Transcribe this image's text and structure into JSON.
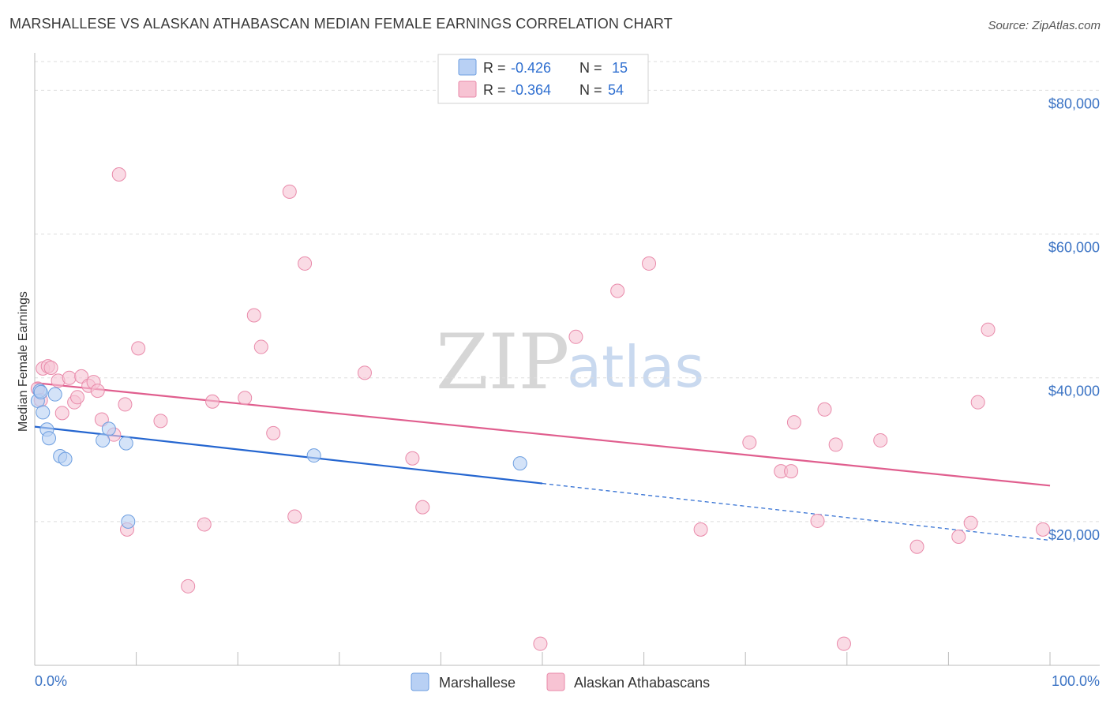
{
  "header": {
    "title": "MARSHALLESE VS ALASKAN ATHABASCAN MEDIAN FEMALE EARNINGS CORRELATION CHART",
    "source": "Source: ZipAtlas.com"
  },
  "watermark": {
    "zip": "ZIP",
    "atlas": "atlas"
  },
  "colors": {
    "marshallese_fill": "#b8d0f4",
    "marshallese_stroke": "#6c9ee0",
    "marshallese_line": "#2566d0",
    "athabascan_fill": "#f7c3d3",
    "athabascan_stroke": "#e98aaa",
    "athabascan_line": "#e05e8e",
    "tick_text": "#3b73c4",
    "grid": "#dddddd"
  },
  "legend": {
    "rows": [
      {
        "r_label": "R =",
        "r_value": "-0.426",
        "n_label": "N =",
        "n_value": "15"
      },
      {
        "r_label": "R =",
        "r_value": "-0.364",
        "n_label": "N =",
        "n_value": "54"
      }
    ]
  },
  "bottom_legend": {
    "marshallese": "Marshallese",
    "athabascan": "Alaskan Athabascans"
  },
  "chart_data": {
    "type": "scatter",
    "title": "MARSHALLESE VS ALASKAN ATHABASCAN MEDIAN FEMALE EARNINGS CORRELATION CHART",
    "xlabel": "",
    "ylabel": "Median Female Earnings",
    "xlim": [
      0,
      100
    ],
    "ylim": [
      0,
      84000
    ],
    "x_tick_labels": [
      "0.0%",
      "100.0%"
    ],
    "y_ticks": [
      {
        "value": 20000,
        "label": "$20,000"
      },
      {
        "value": 40000,
        "label": "$40,000"
      },
      {
        "value": 60000,
        "label": "$60,000"
      },
      {
        "value": 80000,
        "label": "$80,000"
      }
    ],
    "series": [
      {
        "name": "Marshallese",
        "r": -0.426,
        "n": 15,
        "points": [
          [
            0.3,
            36800
          ],
          [
            0.5,
            38200
          ],
          [
            0.8,
            35200
          ],
          [
            1.2,
            32800
          ],
          [
            1.4,
            31600
          ],
          [
            2.0,
            37700
          ],
          [
            2.5,
            29100
          ],
          [
            3.0,
            28700
          ],
          [
            6.7,
            31300
          ],
          [
            7.3,
            32900
          ],
          [
            9.0,
            30900
          ],
          [
            9.2,
            20000
          ],
          [
            27.5,
            29200
          ],
          [
            47.8,
            28100
          ],
          [
            0.6,
            38000
          ]
        ],
        "trend": {
          "x0": 0,
          "y0": 33200,
          "x1": 50,
          "y1": 25300,
          "dash_to_x": 100,
          "dash_to_y": 17400
        }
      },
      {
        "name": "Alaskan Athabascans",
        "r": -0.364,
        "n": 54,
        "points": [
          [
            0.3,
            38500
          ],
          [
            0.6,
            36900
          ],
          [
            0.8,
            41300
          ],
          [
            1.3,
            41600
          ],
          [
            1.6,
            41400
          ],
          [
            2.3,
            39600
          ],
          [
            2.7,
            35100
          ],
          [
            3.4,
            40000
          ],
          [
            3.9,
            36600
          ],
          [
            4.2,
            37300
          ],
          [
            4.6,
            40200
          ],
          [
            5.3,
            38900
          ],
          [
            5.8,
            39400
          ],
          [
            6.2,
            38200
          ],
          [
            6.6,
            34200
          ],
          [
            7.8,
            32100
          ],
          [
            8.3,
            68300
          ],
          [
            8.9,
            36300
          ],
          [
            9.1,
            18900
          ],
          [
            10.2,
            44100
          ],
          [
            12.4,
            34000
          ],
          [
            15.1,
            11000
          ],
          [
            16.7,
            19600
          ],
          [
            17.5,
            36700
          ],
          [
            20.7,
            37200
          ],
          [
            21.6,
            48700
          ],
          [
            22.3,
            44300
          ],
          [
            23.5,
            32300
          ],
          [
            25.1,
            65900
          ],
          [
            25.6,
            20700
          ],
          [
            26.6,
            55900
          ],
          [
            32.5,
            40700
          ],
          [
            37.2,
            28800
          ],
          [
            38.2,
            22000
          ],
          [
            49.8,
            3000
          ],
          [
            53.3,
            45700
          ],
          [
            57.4,
            52100
          ],
          [
            60.5,
            55900
          ],
          [
            65.6,
            18900
          ],
          [
            70.4,
            31000
          ],
          [
            73.5,
            27000
          ],
          [
            74.5,
            27000
          ],
          [
            74.8,
            33800
          ],
          [
            77.1,
            20100
          ],
          [
            77.8,
            35600
          ],
          [
            78.9,
            30700
          ],
          [
            79.7,
            3000
          ],
          [
            83.3,
            31300
          ],
          [
            86.9,
            16500
          ],
          [
            91.0,
            17900
          ],
          [
            92.2,
            19800
          ],
          [
            92.9,
            36600
          ],
          [
            93.9,
            46700
          ],
          [
            99.3,
            18900
          ]
        ],
        "trend": {
          "x0": 0,
          "y0": 39300,
          "x1": 100,
          "y1": 25000
        }
      }
    ]
  }
}
